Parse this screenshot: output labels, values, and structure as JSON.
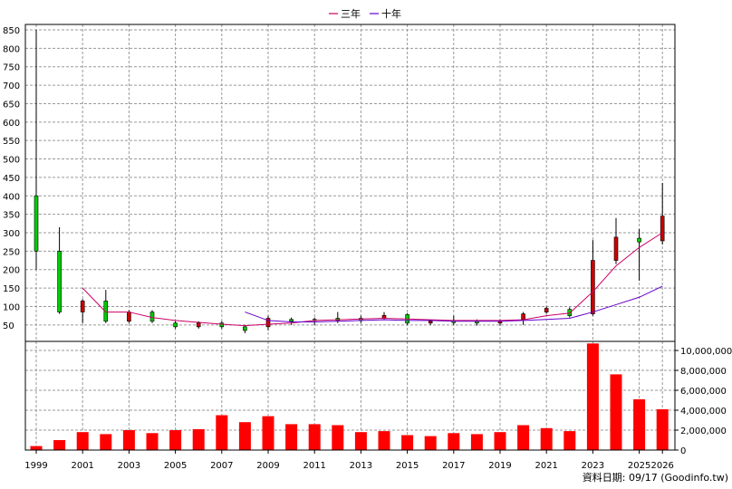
{
  "legend": [
    {
      "label": "三年",
      "color": "#cc0066"
    },
    {
      "label": "十年",
      "color": "#6600cc"
    }
  ],
  "footer": "資料日期: 09/17  (Goodinfo.tw)",
  "colors": {
    "up": "#cc0000",
    "down": "#00cc00",
    "volume": "#ff0000",
    "wick": "#000000"
  },
  "chart_data": [
    {
      "type": "candlestick",
      "x_ticks": [
        "1999",
        "2001",
        "2003",
        "2005",
        "2007",
        "2009",
        "2011",
        "2013",
        "2015",
        "2017",
        "2019",
        "2021",
        "2023",
        "2025",
        "2026"
      ],
      "y_ticks": [
        50,
        100,
        150,
        200,
        250,
        300,
        350,
        400,
        450,
        500,
        550,
        600,
        650,
        700,
        750,
        800,
        850
      ],
      "ylim": [
        25,
        860
      ],
      "grid": true,
      "legend_position": "top-center",
      "candles": [
        {
          "year": 1999,
          "open": 250,
          "close": 400,
          "high": 850,
          "low": 200
        },
        {
          "year": 2000,
          "open": 85,
          "close": 250,
          "high": 315,
          "low": 80
        },
        {
          "year": 2001,
          "open": 115,
          "close": 85,
          "high": 120,
          "low": 55
        },
        {
          "year": 2002,
          "open": 60,
          "close": 115,
          "high": 145,
          "low": 55
        },
        {
          "year": 2003,
          "open": 85,
          "close": 60,
          "high": 90,
          "low": 55
        },
        {
          "year": 2004,
          "open": 60,
          "close": 85,
          "high": 90,
          "low": 55
        },
        {
          "year": 2005,
          "open": 45,
          "close": 55,
          "high": 60,
          "low": 40
        },
        {
          "year": 2006,
          "open": 55,
          "close": 45,
          "high": 60,
          "low": 40
        },
        {
          "year": 2007,
          "open": 45,
          "close": 55,
          "high": 60,
          "low": 40
        },
        {
          "year": 2008,
          "open": 35,
          "close": 45,
          "high": 50,
          "low": 28
        },
        {
          "year": 2009,
          "open": 68,
          "close": 45,
          "high": 75,
          "low": 35
        },
        {
          "year": 2010,
          "open": 60,
          "close": 65,
          "high": 70,
          "low": 50
        },
        {
          "year": 2011,
          "open": 62,
          "close": 65,
          "high": 70,
          "low": 50
        },
        {
          "year": 2012,
          "open": 62,
          "close": 68,
          "high": 85,
          "low": 55
        },
        {
          "year": 2013,
          "open": 62,
          "close": 68,
          "high": 75,
          "low": 55
        },
        {
          "year": 2014,
          "open": 76,
          "close": 68,
          "high": 85,
          "low": 65
        },
        {
          "year": 2015,
          "open": 55,
          "close": 78,
          "high": 82,
          "low": 50
        },
        {
          "year": 2016,
          "open": 60,
          "close": 55,
          "high": 65,
          "low": 50
        },
        {
          "year": 2017,
          "open": 58,
          "close": 60,
          "high": 75,
          "low": 50
        },
        {
          "year": 2018,
          "open": 55,
          "close": 60,
          "high": 65,
          "low": 48
        },
        {
          "year": 2019,
          "open": 60,
          "close": 55,
          "high": 65,
          "low": 48
        },
        {
          "year": 2020,
          "open": 80,
          "close": 65,
          "high": 85,
          "low": 50
        },
        {
          "year": 2021,
          "open": 95,
          "close": 85,
          "high": 100,
          "low": 80
        },
        {
          "year": 2022,
          "open": 75,
          "close": 92,
          "high": 98,
          "low": 70
        },
        {
          "year": 2023,
          "open": 225,
          "close": 80,
          "high": 280,
          "low": 75
        },
        {
          "year": 2024,
          "open": 288,
          "close": 225,
          "high": 340,
          "low": 215
        },
        {
          "year": 2025,
          "open": 275,
          "close": 285,
          "high": 310,
          "low": 170
        },
        {
          "year": 2026,
          "open": 345,
          "close": 278,
          "high": 435,
          "low": 268
        }
      ],
      "series": [
        {
          "name": "三年",
          "x": [
            2001,
            2002,
            2003,
            2004,
            2005,
            2006,
            2007,
            2008,
            2009,
            2010,
            2011,
            2012,
            2013,
            2014,
            2015,
            2016,
            2017,
            2018,
            2019,
            2020,
            2021,
            2022,
            2023,
            2024,
            2025,
            2026
          ],
          "values": [
            150,
            85,
            85,
            70,
            62,
            57,
            52,
            48,
            52,
            55,
            62,
            64,
            66,
            68,
            66,
            64,
            62,
            62,
            62,
            64,
            75,
            82,
            140,
            210,
            260,
            300
          ]
        },
        {
          "name": "十年",
          "x": [
            2008,
            2009,
            2010,
            2011,
            2012,
            2013,
            2014,
            2015,
            2016,
            2017,
            2018,
            2019,
            2020,
            2021,
            2022,
            2023,
            2024,
            2025,
            2026
          ],
          "values": [
            85,
            62,
            58,
            58,
            60,
            62,
            64,
            62,
            62,
            60,
            60,
            60,
            62,
            65,
            68,
            85,
            105,
            125,
            155
          ]
        }
      ]
    },
    {
      "type": "bar",
      "y_ticks": [
        0,
        2000000,
        4000000,
        6000000,
        8000000,
        10000000
      ],
      "y_tick_labels": [
        "0",
        "2,000,000",
        "4,000,000",
        "6,000,000",
        "8,000,000",
        "10,000,000"
      ],
      "ylim": [
        0,
        11000000
      ],
      "grid": true,
      "categories": [
        1999,
        2000,
        2001,
        2002,
        2003,
        2004,
        2005,
        2006,
        2007,
        2008,
        2009,
        2010,
        2011,
        2012,
        2013,
        2014,
        2015,
        2016,
        2017,
        2018,
        2019,
        2020,
        2021,
        2022,
        2023,
        2024,
        2025,
        2026
      ],
      "values": [
        400000,
        1000000,
        1800000,
        1600000,
        2000000,
        1700000,
        2000000,
        2100000,
        3500000,
        2800000,
        3400000,
        2600000,
        2600000,
        2500000,
        1800000,
        1900000,
        1500000,
        1400000,
        1700000,
        1600000,
        1800000,
        2500000,
        2200000,
        1900000,
        10700000,
        7600000,
        5100000,
        4100000
      ]
    }
  ]
}
